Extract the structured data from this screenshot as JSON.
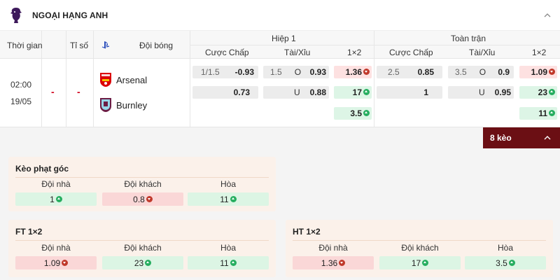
{
  "league": {
    "title": "NGOẠI HẠNG ANH",
    "logo": "premier-league-logo"
  },
  "table": {
    "headers": {
      "time": "Thời gian",
      "score": "Tỉ số",
      "team": "Đội bóng",
      "half1": "Hiệp 1",
      "full": "Toàn trận",
      "handicap": "Cược Chấp",
      "overunder": "Tài/Xỉu",
      "x12": "1×2"
    },
    "match": {
      "time": "02:00",
      "date": "19/05",
      "score_home": "-",
      "score_away": "-",
      "home": "Arsenal",
      "away": "Burnley"
    },
    "half1": {
      "handicap": [
        {
          "line": "1/1.5",
          "odds": "-0.93"
        },
        {
          "line": "",
          "odds": "0.73"
        }
      ],
      "overunder": [
        {
          "line": "1.5",
          "side": "O",
          "odds": "0.93"
        },
        {
          "line": "",
          "side": "U",
          "odds": "0.88"
        }
      ],
      "x12": [
        {
          "odds": "1.36",
          "trend": "down"
        },
        {
          "odds": "17",
          "trend": "up"
        },
        {
          "odds": "3.5",
          "trend": "up"
        }
      ]
    },
    "full": {
      "handicap": [
        {
          "line": "2.5",
          "odds": "0.85"
        },
        {
          "line": "",
          "odds": "1"
        }
      ],
      "overunder": [
        {
          "line": "3.5",
          "side": "O",
          "odds": "0.9"
        },
        {
          "line": "",
          "side": "U",
          "odds": "0.95"
        }
      ],
      "x12": [
        {
          "odds": "1.09",
          "trend": "down"
        },
        {
          "odds": "23",
          "trend": "up"
        },
        {
          "odds": "11",
          "trend": "up"
        }
      ]
    },
    "more_label": "8 kèo"
  },
  "cards": {
    "corner": {
      "title": "Kèo phạt góc",
      "cols": [
        "Đội nhà",
        "Đội khách",
        "Hòa"
      ],
      "values": [
        {
          "odds": "1",
          "trend": "up"
        },
        {
          "odds": "0.8",
          "trend": "down"
        },
        {
          "odds": "11",
          "trend": "up"
        }
      ]
    },
    "ft": {
      "title": "FT 1×2",
      "cols": [
        "Đội nhà",
        "Đội khách",
        "Hòa"
      ],
      "values": [
        {
          "odds": "1.09",
          "trend": "down"
        },
        {
          "odds": "23",
          "trend": "up"
        },
        {
          "odds": "11",
          "trend": "up"
        }
      ]
    },
    "ht": {
      "title": "HT 1×2",
      "cols": [
        "Đội nhà",
        "Đội khách",
        "Hòa"
      ],
      "values": [
        {
          "odds": "1.36",
          "trend": "down"
        },
        {
          "odds": "17",
          "trend": "up"
        },
        {
          "odds": "3.5",
          "trend": "up"
        }
      ]
    }
  },
  "colors": {
    "down": "#c0392b",
    "up": "#27ae60",
    "accent": "#6b0f14"
  }
}
